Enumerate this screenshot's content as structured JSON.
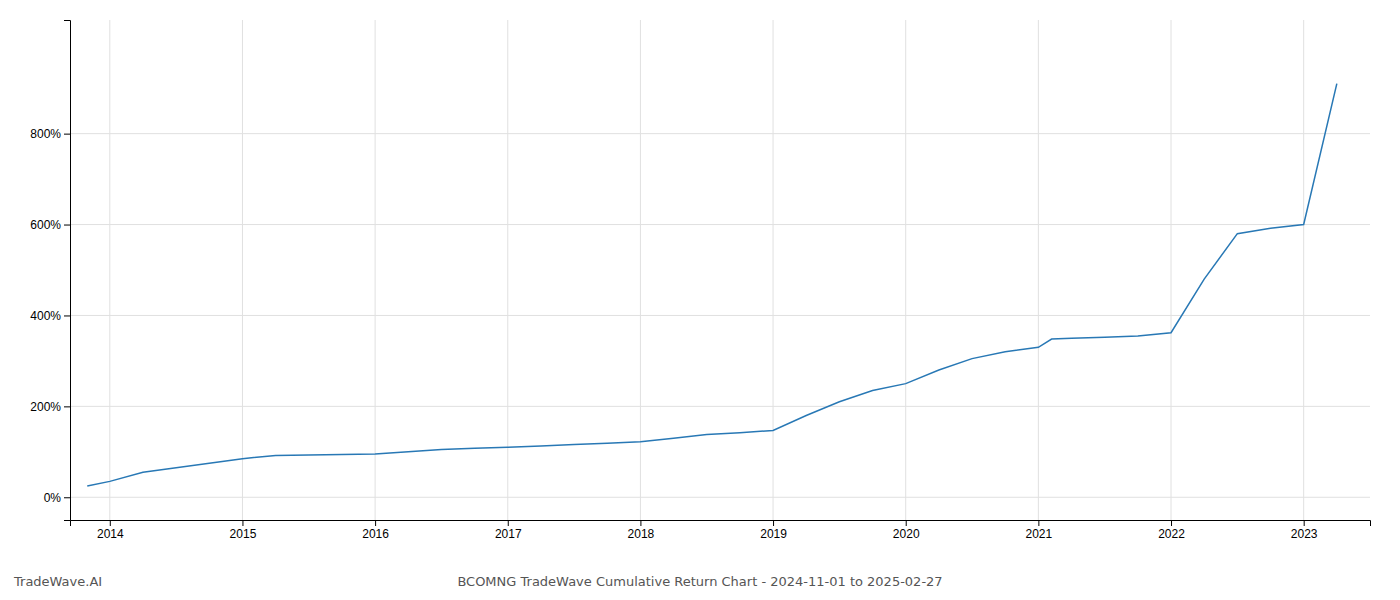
{
  "chart_data": {
    "type": "line",
    "title": "BCOMNG TradeWave Cumulative Return Chart - 2024-11-01 to 2025-02-27",
    "annotations": [
      "TradeWave.AI"
    ],
    "color": "#2878b5",
    "grid": true,
    "x": [
      2013.83,
      2014.0,
      2014.25,
      2014.5,
      2014.75,
      2015.0,
      2015.25,
      2015.5,
      2015.75,
      2016.0,
      2016.25,
      2016.5,
      2016.75,
      2017.0,
      2017.25,
      2017.5,
      2017.75,
      2018.0,
      2018.25,
      2018.5,
      2018.75,
      2019.0,
      2019.25,
      2019.5,
      2019.75,
      2020.0,
      2020.25,
      2020.5,
      2020.75,
      2021.0,
      2021.1,
      2021.25,
      2021.5,
      2021.75,
      2022.0,
      2022.25,
      2022.5,
      2022.75,
      2023.0,
      2023.25
    ],
    "values": [
      0.25,
      0.35,
      0.55,
      0.65,
      0.75,
      0.85,
      0.92,
      0.93,
      0.94,
      0.95,
      1.0,
      1.05,
      1.08,
      1.1,
      1.13,
      1.16,
      1.19,
      1.22,
      1.3,
      1.38,
      1.42,
      1.47,
      1.8,
      2.1,
      2.35,
      2.5,
      2.8,
      3.05,
      3.2,
      3.3,
      3.48,
      3.5,
      3.52,
      3.55,
      3.62,
      4.8,
      5.8,
      5.92,
      6.0,
      9.1
    ],
    "xlim": [
      2013.7,
      2023.5
    ],
    "xticks": [
      2014,
      2015,
      2016,
      2017,
      2018,
      2019,
      2020,
      2021,
      2022,
      2023
    ],
    "ylim": [
      -0.5,
      10.5
    ],
    "yticks": [
      {
        "value": 0,
        "label": "0%"
      },
      {
        "value": 2,
        "label": "200%"
      },
      {
        "value": 4,
        "label": "400%"
      },
      {
        "value": 6,
        "label": "600%"
      },
      {
        "value": 8,
        "label": "800%"
      }
    ]
  }
}
